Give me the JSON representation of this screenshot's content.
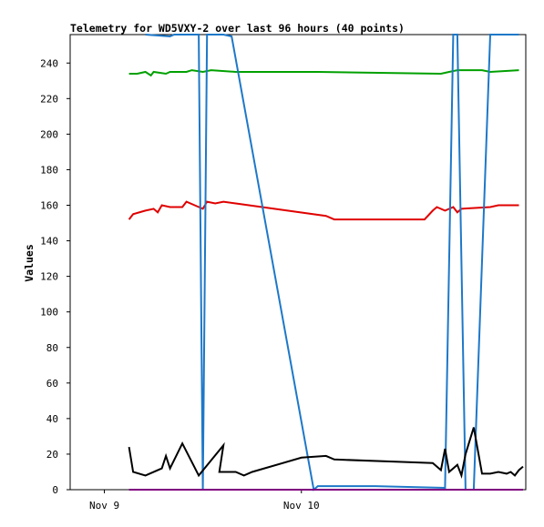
{
  "chart_data": {
    "type": "line",
    "title": "Telemetry for WD5VXY-2 over last 96 hours (40 points)",
    "xlabel": "",
    "ylabel": "Values",
    "ylim": [
      0,
      256
    ],
    "y_ticks": [
      0,
      20,
      40,
      60,
      80,
      100,
      120,
      140,
      160,
      180,
      200,
      220,
      240
    ],
    "xlim": [
      "2024-11-08T19:50",
      "2024-11-11T03:20"
    ],
    "x_ticks": [
      {
        "t": "2024-11-09T00:00",
        "label": "Nov 9"
      },
      {
        "t": "2024-11-10T00:00",
        "label": "Nov 10"
      }
    ],
    "grid": false,
    "legend": "none",
    "series": [
      {
        "color": "#00a000",
        "points": [
          [
            "2024-11-09T03:00",
            234
          ],
          [
            "2024-11-09T04:00",
            234
          ],
          [
            "2024-11-09T05:00",
            235
          ],
          [
            "2024-11-09T05:40",
            233
          ],
          [
            "2024-11-09T06:00",
            235
          ],
          [
            "2024-11-09T07:30",
            234
          ],
          [
            "2024-11-09T08:00",
            235
          ],
          [
            "2024-11-09T10:00",
            235
          ],
          [
            "2024-11-09T10:40",
            236
          ],
          [
            "2024-11-09T12:00",
            235
          ],
          [
            "2024-11-09T13:00",
            236
          ],
          [
            "2024-11-09T16:00",
            235
          ],
          [
            "2024-11-10T02:00",
            235
          ],
          [
            "2024-11-10T17:00",
            234
          ],
          [
            "2024-11-10T18:00",
            235
          ],
          [
            "2024-11-10T19:00",
            236
          ],
          [
            "2024-11-10T22:00",
            236
          ],
          [
            "2024-11-10T23:00",
            235
          ],
          [
            "2024-11-11T02:30",
            236
          ]
        ]
      },
      {
        "color": "#e00000",
        "points": [
          [
            "2024-11-09T03:00",
            152
          ],
          [
            "2024-11-09T03:30",
            155
          ],
          [
            "2024-11-09T05:00",
            157
          ],
          [
            "2024-11-09T06:00",
            158
          ],
          [
            "2024-11-09T06:30",
            156
          ],
          [
            "2024-11-09T07:00",
            160
          ],
          [
            "2024-11-09T08:00",
            159
          ],
          [
            "2024-11-09T09:30",
            159
          ],
          [
            "2024-11-09T10:00",
            162
          ],
          [
            "2024-11-09T11:00",
            160
          ],
          [
            "2024-11-09T12:00",
            158
          ],
          [
            "2024-11-09T12:30",
            162
          ],
          [
            "2024-11-09T13:30",
            161
          ],
          [
            "2024-11-09T14:30",
            162
          ],
          [
            "2024-11-09T16:00",
            161
          ],
          [
            "2024-11-10T03:00",
            154
          ],
          [
            "2024-11-10T04:00",
            152
          ],
          [
            "2024-11-10T15:00",
            152
          ],
          [
            "2024-11-10T16:00",
            157
          ],
          [
            "2024-11-10T16:30",
            159
          ],
          [
            "2024-11-10T17:30",
            157
          ],
          [
            "2024-11-10T18:30",
            159
          ],
          [
            "2024-11-10T19:00",
            156
          ],
          [
            "2024-11-10T19:30",
            158
          ],
          [
            "2024-11-10T23:00",
            159
          ],
          [
            "2024-11-11T00:00",
            160
          ],
          [
            "2024-11-11T02:30",
            160
          ]
        ]
      },
      {
        "color": "#1e78c8",
        "points": [
          [
            "2024-11-09T05:00",
            256
          ],
          [
            "2024-11-09T08:00",
            255
          ],
          [
            "2024-11-09T08:30",
            256
          ],
          [
            "2024-11-09T11:30",
            256
          ],
          [
            "2024-11-09T12:00",
            0
          ],
          [
            "2024-11-09T12:30",
            256
          ],
          [
            "2024-11-09T13:00",
            256
          ],
          [
            "2024-11-09T14:30",
            256
          ],
          [
            "2024-11-09T15:30",
            255
          ],
          [
            "2024-11-10T01:30",
            0
          ],
          [
            "2024-11-10T02:00",
            2
          ],
          [
            "2024-11-10T08:00",
            2
          ],
          [
            "2024-11-10T09:00",
            2
          ],
          [
            "2024-11-10T17:30",
            1
          ],
          [
            "2024-11-10T18:30",
            256
          ],
          [
            "2024-11-10T19:00",
            256
          ],
          [
            "2024-11-10T20:00",
            0
          ],
          [
            "2024-11-10T21:00",
            0
          ],
          [
            "2024-11-10T23:00",
            256
          ],
          [
            "2024-11-11T02:30",
            256
          ]
        ]
      },
      {
        "color": "#000000",
        "points": [
          [
            "2024-11-09T03:00",
            24
          ],
          [
            "2024-11-09T03:30",
            10
          ],
          [
            "2024-11-09T05:00",
            8
          ],
          [
            "2024-11-09T07:00",
            12
          ],
          [
            "2024-11-09T07:30",
            19
          ],
          [
            "2024-11-09T08:00",
            12
          ],
          [
            "2024-11-09T09:30",
            26
          ],
          [
            "2024-11-09T11:30",
            8
          ],
          [
            "2024-11-09T14:30",
            25
          ],
          [
            "2024-11-09T14:00",
            10
          ],
          [
            "2024-11-09T15:00",
            10
          ],
          [
            "2024-11-09T16:00",
            10
          ],
          [
            "2024-11-09T17:00",
            8
          ],
          [
            "2024-11-09T18:00",
            10
          ],
          [
            "2024-11-10T00:00",
            18
          ],
          [
            "2024-11-10T03:00",
            19
          ],
          [
            "2024-11-10T04:00",
            17
          ],
          [
            "2024-11-10T16:00",
            15
          ],
          [
            "2024-11-10T17:00",
            11
          ],
          [
            "2024-11-10T17:30",
            23
          ],
          [
            "2024-11-10T18:00",
            10
          ],
          [
            "2024-11-10T19:00",
            14
          ],
          [
            "2024-11-10T19:30",
            8
          ],
          [
            "2024-11-10T20:00",
            20
          ],
          [
            "2024-11-10T21:00",
            35
          ],
          [
            "2024-11-10T22:00",
            9
          ],
          [
            "2024-11-10T23:00",
            9
          ],
          [
            "2024-11-11T00:00",
            10
          ],
          [
            "2024-11-11T01:00",
            9
          ],
          [
            "2024-11-11T01:30",
            10
          ],
          [
            "2024-11-11T02:00",
            8
          ],
          [
            "2024-11-11T02:30",
            11
          ],
          [
            "2024-11-11T03:00",
            13
          ]
        ]
      },
      {
        "color": "#800080",
        "points": [
          [
            "2024-11-09T03:00",
            0
          ],
          [
            "2024-11-11T03:00",
            0
          ]
        ]
      }
    ]
  }
}
